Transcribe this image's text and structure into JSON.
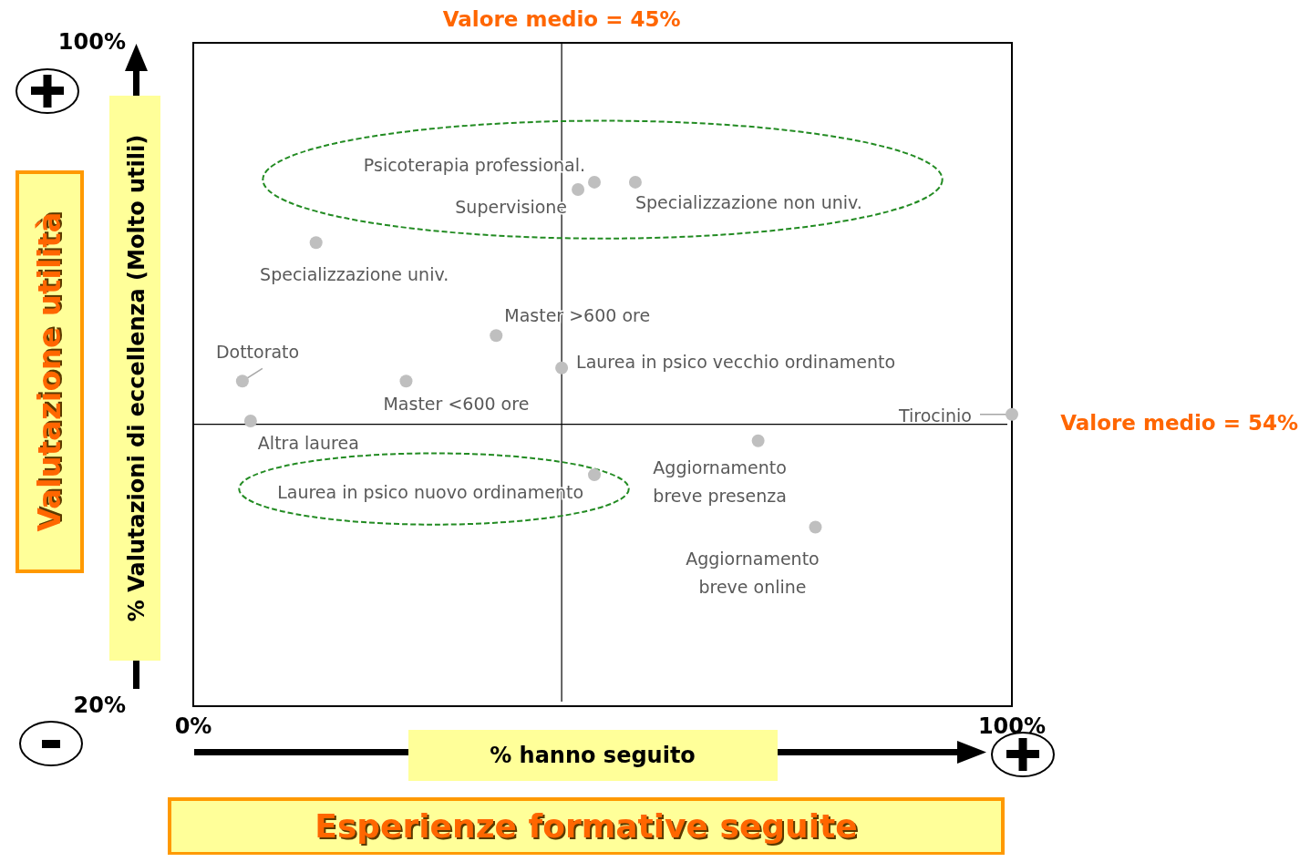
{
  "chart_data": {
    "type": "scatter",
    "title": "Esperienze formative seguite",
    "xlabel": "% hanno seguito",
    "ylabel": "% Valutazioni di eccellenza (Molto utili)",
    "annotations": [
      "Valutazione utilità"
    ],
    "xlim": [
      0,
      100
    ],
    "ylim": [
      20,
      100
    ],
    "xticks": [
      {
        "value": 0,
        "label": "0%"
      },
      {
        "value": 100,
        "label": "100%"
      }
    ],
    "yticks": [
      {
        "value": 20,
        "label": "20%"
      },
      {
        "value": 100,
        "label": "100%"
      }
    ],
    "marker": "circle",
    "ref_lines": [
      {
        "axis": "x",
        "value": 45,
        "label": "Valore medio = 45%",
        "color": "#000000"
      },
      {
        "axis": "y",
        "value": 54,
        "label": "Valore medio = 54%",
        "color": "#000000"
      }
    ],
    "series": [
      {
        "name": "Psicoterapia professional.",
        "color": "#bfbfbf",
        "x": [
          49
        ],
        "values": [
          83.2
        ]
      },
      {
        "name": "Supervisione",
        "color": "#bfbfbf",
        "x": [
          47
        ],
        "values": [
          82.3
        ]
      },
      {
        "name": "Specializzazione non univ.",
        "color": "#bfbfbf",
        "x": [
          54
        ],
        "values": [
          83.2
        ]
      },
      {
        "name": "Specializzazione univ.",
        "color": "#bfbfbf",
        "x": [
          15
        ],
        "values": [
          75.9
        ]
      },
      {
        "name": "Master >600 ore",
        "color": "#bfbfbf",
        "x": [
          37
        ],
        "values": [
          64.7
        ]
      },
      {
        "name": "Dottorato",
        "color": "#bfbfbf",
        "x": [
          6
        ],
        "values": [
          59.2
        ]
      },
      {
        "name": "Master <600 ore",
        "color": "#bfbfbf",
        "x": [
          26
        ],
        "values": [
          59.2
        ]
      },
      {
        "name": "Laurea in psico vecchio ordinamento",
        "color": "#bfbfbf",
        "x": [
          45
        ],
        "values": [
          60.8
        ]
      },
      {
        "name": "Altra laurea",
        "color": "#bfbfbf",
        "x": [
          7
        ],
        "values": [
          54.4
        ]
      },
      {
        "name": "Laurea in psico nuovo ordinamento",
        "color": "#bfbfbf",
        "x": [
          49
        ],
        "values": [
          47.9
        ]
      },
      {
        "name": "Tirocinio",
        "color": "#bfbfbf",
        "x": [
          100
        ],
        "values": [
          55.2
        ]
      },
      {
        "name": "Aggiornamento breve presenza",
        "color": "#bfbfbf",
        "x": [
          69
        ],
        "values": [
          52
        ]
      },
      {
        "name": "Aggiornamento breve online",
        "color": "#bfbfbf",
        "x": [
          76
        ],
        "values": [
          41.6
        ]
      }
    ]
  }
}
